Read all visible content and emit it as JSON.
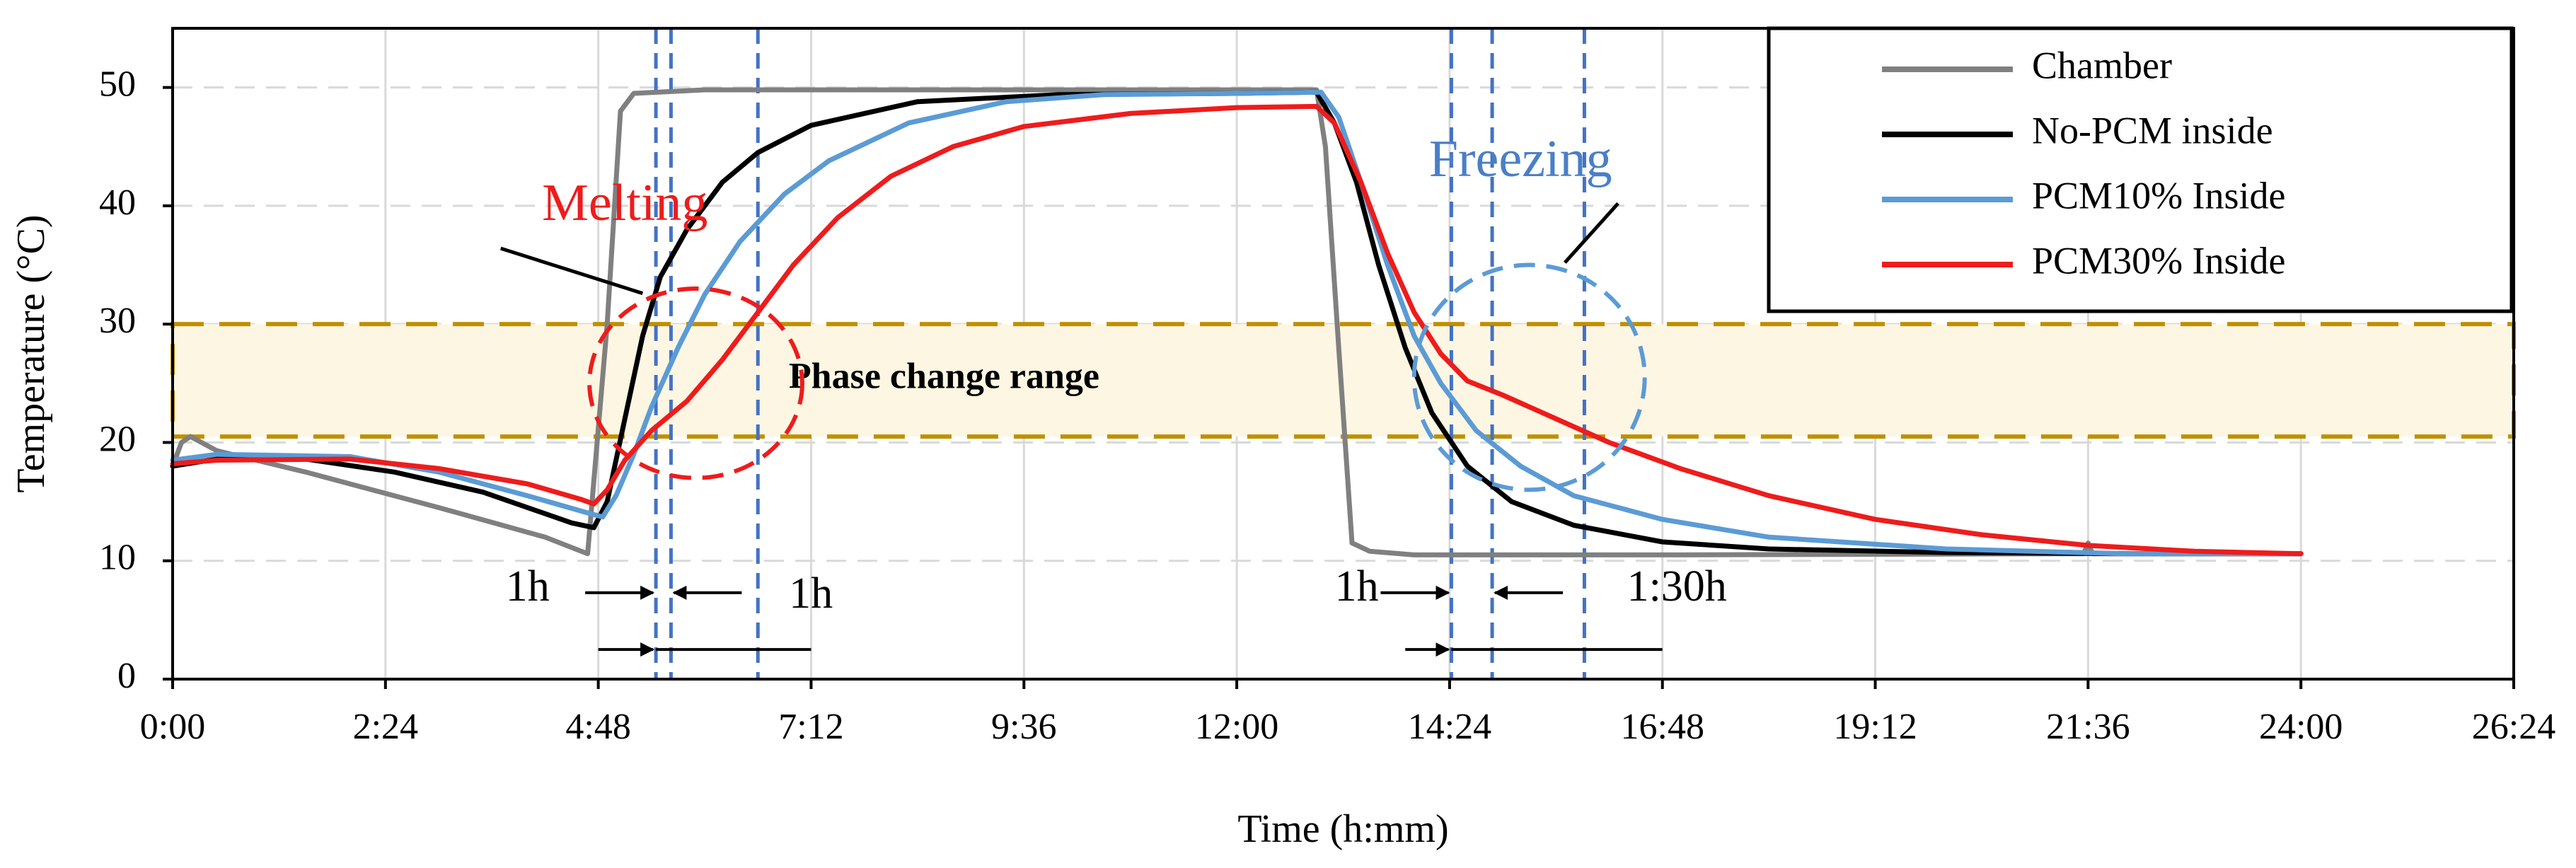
{
  "chart_data": {
    "type": "line",
    "xlabel": "Time (h:mm)",
    "ylabel": "Temperature (°C)",
    "xlim": [
      0,
      26.4
    ],
    "ylim": [
      0,
      55
    ],
    "x_ticks": [
      {
        "v": 0,
        "label": "0:00"
      },
      {
        "v": 2.4,
        "label": "2:24"
      },
      {
        "v": 4.8,
        "label": "4:48"
      },
      {
        "v": 7.2,
        "label": "7:12"
      },
      {
        "v": 9.6,
        "label": "9:36"
      },
      {
        "v": 12.0,
        "label": "12:00"
      },
      {
        "v": 14.4,
        "label": "14:24"
      },
      {
        "v": 16.8,
        "label": "16:48"
      },
      {
        "v": 19.2,
        "label": "19:12"
      },
      {
        "v": 21.6,
        "label": "21:36"
      },
      {
        "v": 24.0,
        "label": "24:00"
      },
      {
        "v": 26.4,
        "label": "26:24"
      }
    ],
    "y_ticks": [
      {
        "v": 0,
        "label": "0"
      },
      {
        "v": 10,
        "label": "10"
      },
      {
        "v": 20,
        "label": "20"
      },
      {
        "v": 30,
        "label": "30"
      },
      {
        "v": 40,
        "label": "40"
      },
      {
        "v": 50,
        "label": "50"
      }
    ],
    "phase_band": {
      "from": 20.5,
      "to": 30,
      "label": "Phase change range",
      "label_x": 8.7,
      "label_y": 25.3
    },
    "series": [
      {
        "name": "Chamber",
        "color": "#808080",
        "points": [
          [
            0,
            18
          ],
          [
            0.1,
            20
          ],
          [
            0.2,
            20.5
          ],
          [
            0.5,
            19.3
          ],
          [
            1.5,
            17.5
          ],
          [
            3,
            14.5
          ],
          [
            4.2,
            12
          ],
          [
            4.68,
            10.6
          ],
          [
            4.9,
            30
          ],
          [
            5.05,
            48
          ],
          [
            5.2,
            49.5
          ],
          [
            6,
            49.8
          ],
          [
            9,
            49.8
          ],
          [
            12,
            49.8
          ],
          [
            12.9,
            49.8
          ],
          [
            13.0,
            45
          ],
          [
            13.15,
            28
          ],
          [
            13.3,
            11.5
          ],
          [
            13.5,
            10.8
          ],
          [
            14,
            10.5
          ],
          [
            17,
            10.5
          ],
          [
            21.55,
            10.6
          ],
          [
            21.6,
            11.5
          ],
          [
            21.65,
            10.6
          ],
          [
            24,
            10.6
          ]
        ]
      },
      {
        "name": "No-PCM  inside",
        "color": "#000000",
        "points": [
          [
            0,
            18
          ],
          [
            0.5,
            18.6
          ],
          [
            1.5,
            18.6
          ],
          [
            2.5,
            17.5
          ],
          [
            3.5,
            15.8
          ],
          [
            4.5,
            13.2
          ],
          [
            4.75,
            12.8
          ],
          [
            4.9,
            15
          ],
          [
            5.1,
            22
          ],
          [
            5.3,
            29
          ],
          [
            5.5,
            34
          ],
          [
            5.8,
            38
          ],
          [
            6.2,
            42
          ],
          [
            6.6,
            44.5
          ],
          [
            7.2,
            46.8
          ],
          [
            8.4,
            48.8
          ],
          [
            10,
            49.4
          ],
          [
            12,
            49.5
          ],
          [
            12.9,
            49.6
          ],
          [
            13.1,
            47
          ],
          [
            13.35,
            42
          ],
          [
            13.6,
            35
          ],
          [
            13.9,
            28
          ],
          [
            14.2,
            22.5
          ],
          [
            14.6,
            18
          ],
          [
            15.1,
            15
          ],
          [
            15.8,
            13
          ],
          [
            16.8,
            11.6
          ],
          [
            18,
            11
          ],
          [
            20,
            10.7
          ],
          [
            22,
            10.6
          ],
          [
            24,
            10.6
          ]
        ]
      },
      {
        "name": "PCM10%  Inside",
        "color": "#5b9bd5",
        "points": [
          [
            0,
            18.5
          ],
          [
            0.5,
            19
          ],
          [
            2,
            18.8
          ],
          [
            3,
            17.5
          ],
          [
            4,
            15.5
          ],
          [
            4.7,
            14
          ],
          [
            4.85,
            13.7
          ],
          [
            5.0,
            15.5
          ],
          [
            5.2,
            19
          ],
          [
            5.4,
            23
          ],
          [
            5.7,
            28
          ],
          [
            6.0,
            32.5
          ],
          [
            6.4,
            37
          ],
          [
            6.9,
            41
          ],
          [
            7.4,
            43.8
          ],
          [
            8.3,
            47
          ],
          [
            9.4,
            48.8
          ],
          [
            10.5,
            49.4
          ],
          [
            12,
            49.5
          ],
          [
            12.95,
            49.6
          ],
          [
            13.15,
            47.5
          ],
          [
            13.4,
            42
          ],
          [
            13.7,
            35
          ],
          [
            14,
            29
          ],
          [
            14.3,
            25
          ],
          [
            14.7,
            21
          ],
          [
            15.2,
            18
          ],
          [
            15.8,
            15.5
          ],
          [
            16.8,
            13.5
          ],
          [
            18,
            12
          ],
          [
            20,
            11
          ],
          [
            22,
            10.6
          ],
          [
            24,
            10.6
          ]
        ]
      },
      {
        "name": "PCM30%  Inside",
        "color": "#ee1c1c",
        "points": [
          [
            0,
            18.2
          ],
          [
            0.5,
            18.5
          ],
          [
            2,
            18.6
          ],
          [
            3,
            17.8
          ],
          [
            4,
            16.5
          ],
          [
            4.6,
            15.2
          ],
          [
            4.75,
            14.8
          ],
          [
            4.9,
            16
          ],
          [
            5.1,
            18.5
          ],
          [
            5.4,
            21
          ],
          [
            5.8,
            23.5
          ],
          [
            6.2,
            27
          ],
          [
            6.6,
            31
          ],
          [
            7.0,
            35
          ],
          [
            7.5,
            39
          ],
          [
            8.1,
            42.5
          ],
          [
            8.8,
            45
          ],
          [
            9.6,
            46.7
          ],
          [
            10.8,
            47.8
          ],
          [
            12,
            48.3
          ],
          [
            12.9,
            48.4
          ],
          [
            13.1,
            47
          ],
          [
            13.4,
            42
          ],
          [
            13.7,
            36
          ],
          [
            14,
            31
          ],
          [
            14.3,
            27.5
          ],
          [
            14.6,
            25.2
          ],
          [
            15.0,
            24
          ],
          [
            15.6,
            22
          ],
          [
            16.2,
            20
          ],
          [
            17,
            17.8
          ],
          [
            18,
            15.5
          ],
          [
            19.2,
            13.5
          ],
          [
            20.4,
            12.2
          ],
          [
            21.6,
            11.3
          ],
          [
            22.8,
            10.8
          ],
          [
            24,
            10.6
          ]
        ]
      }
    ],
    "vlines": [
      5.45,
      5.62,
      6.6,
      14.42,
      14.88,
      15.92
    ],
    "ellipses": [
      {
        "cx": 5.9,
        "cy": 25,
        "rx": 1.2,
        "ry": 8,
        "color": "#ee1c1c"
      },
      {
        "cx": 15.3,
        "cy": 25.5,
        "rx": 1.3,
        "ry": 9.5,
        "color": "#5b9bd5"
      }
    ],
    "annotations": [
      {
        "text": "Melting",
        "x": 5.1,
        "y": 38.8,
        "color": "red",
        "leader": [
          [
            3.7,
            36.4
          ],
          [
            5.3,
            32.6
          ]
        ]
      },
      {
        "text": "Freezing",
        "x": 15.2,
        "y": 42.5,
        "color": "blue",
        "leader": [
          [
            15.7,
            35.2
          ],
          [
            16.3,
            40.2
          ]
        ]
      }
    ],
    "durations": [
      {
        "text": "1h",
        "x": 4.25,
        "y": 7.5,
        "anchor": "end",
        "arrow": [
          5.45,
          5.62
        ],
        "arrow_y": 7.3,
        "line_y": 2.5,
        "line_x": [
          4.8,
          7.2
        ]
      },
      {
        "text": "1h",
        "x": 6.95,
        "y": 6.9,
        "anchor": "start",
        "arrow": null,
        "line_y": null,
        "line_x": null
      },
      {
        "text": "1h",
        "x": 13.6,
        "y": 7.5,
        "anchor": "end",
        "arrow": [
          14.42,
          14.88
        ],
        "arrow_y": 7.3,
        "line_y": 2.5,
        "line_x": [
          13.9,
          16.8
        ]
      },
      {
        "text": "1:30h",
        "x": 16.4,
        "y": 7.5,
        "anchor": "start",
        "arrow": null,
        "line_y": null,
        "line_x": null
      }
    ],
    "legend": {
      "position": "top-right"
    }
  }
}
